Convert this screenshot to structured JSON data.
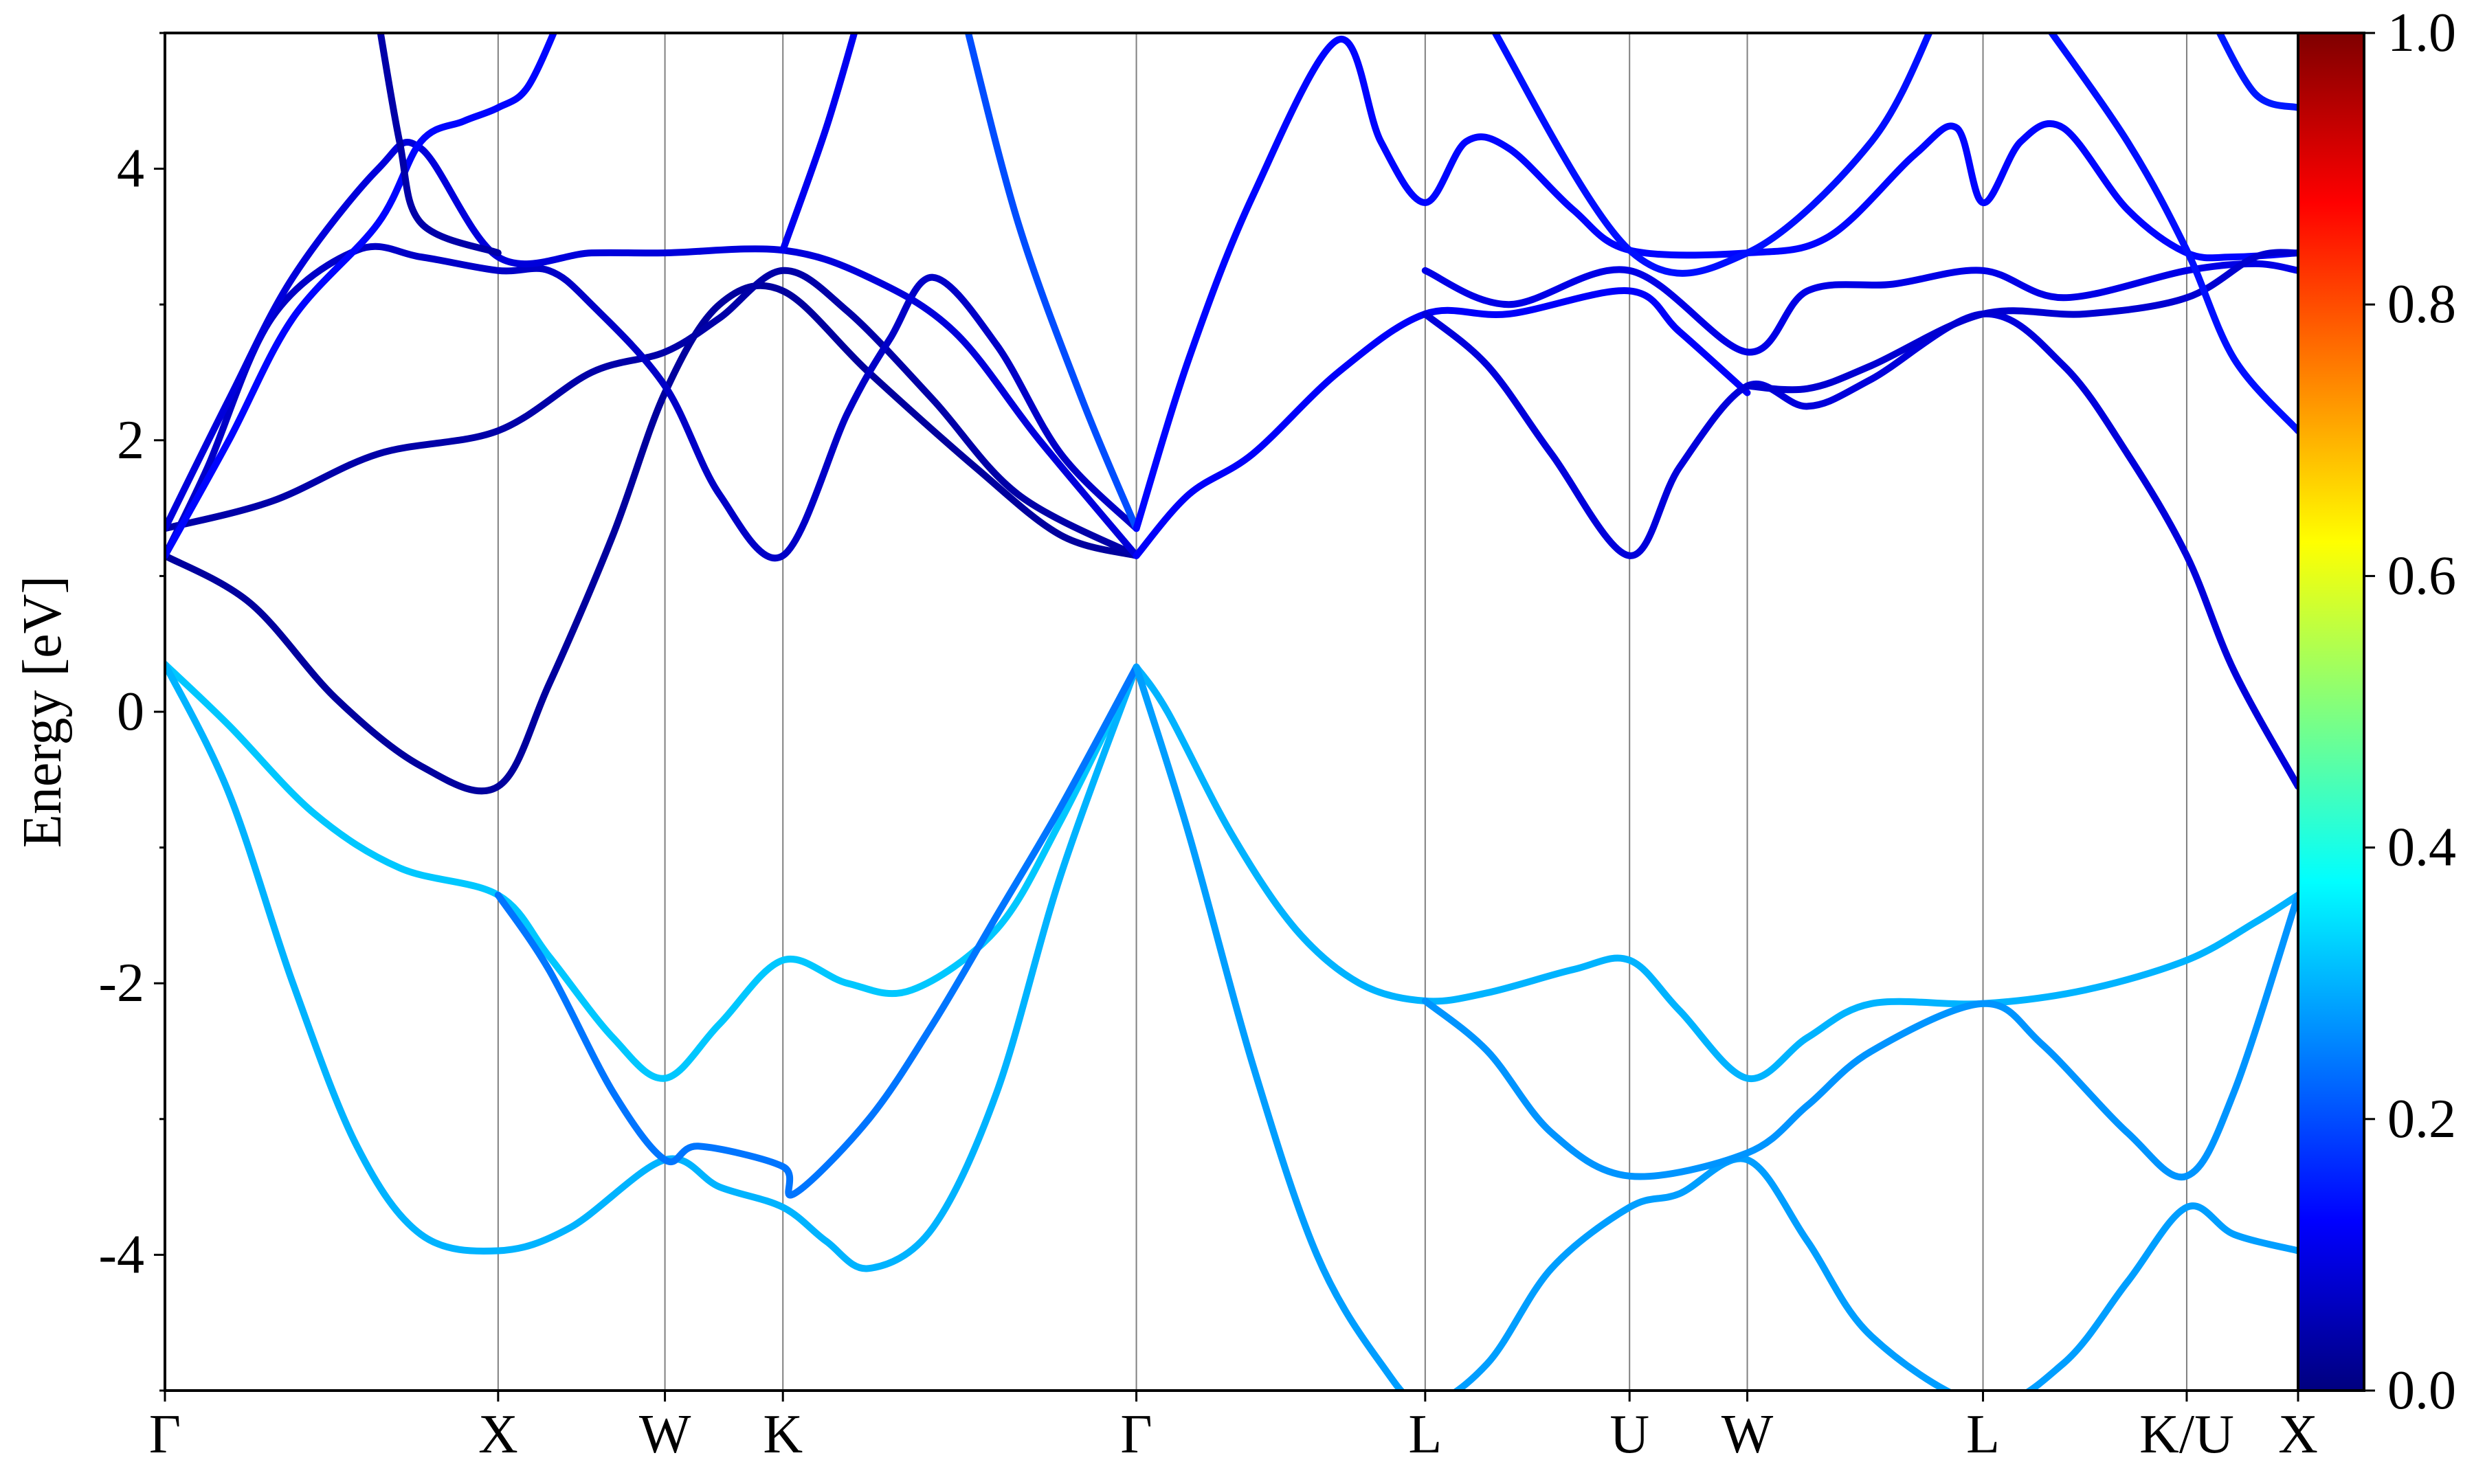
{
  "chart_data": {
    "type": "line",
    "title": "",
    "xlabel": "",
    "ylabel": "Energy [eV]",
    "ylim": [
      -5,
      5
    ],
    "xlim": [
      0,
      1
    ],
    "yticks": [
      -4,
      -2,
      0,
      2,
      4
    ],
    "ytick_labels": [
      "-4",
      "-2",
      "0",
      "2",
      "4"
    ],
    "kpoints": [
      {
        "label": "Γ",
        "x": 0.0
      },
      {
        "label": "X",
        "x": 0.1562
      },
      {
        "label": "W",
        "x": 0.2344
      },
      {
        "label": "K",
        "x": 0.2897
      },
      {
        "label": "Γ",
        "x": 0.4554
      },
      {
        "label": "L",
        "x": 0.5908
      },
      {
        "label": "U",
        "x": 0.6866
      },
      {
        "label": "W",
        "x": 0.7418
      },
      {
        "label": "L",
        "x": 0.8523
      },
      {
        "label": "K/U",
        "x": 0.9478
      },
      {
        "label": "X",
        "x": 1.0
      }
    ],
    "colorbar": {
      "range": [
        0.0,
        1.0
      ],
      "ticks": [
        "0.0",
        "0.2",
        "0.4",
        "0.6",
        "0.8",
        "1.0"
      ],
      "colormap": "jet"
    },
    "series": [
      {
        "weight": 0.32,
        "points": [
          [
            0.0,
            0.35
          ],
          [
            0.03,
            -0.1
          ],
          [
            0.07,
            -0.75
          ],
          [
            0.11,
            -1.15
          ],
          [
            0.1562,
            -1.35
          ],
          [
            0.18,
            -1.8
          ],
          [
            0.21,
            -2.4
          ],
          [
            0.2344,
            -2.7
          ],
          [
            0.26,
            -2.3
          ],
          [
            0.2897,
            -1.83
          ],
          [
            0.32,
            -2.0
          ],
          [
            0.35,
            -2.05
          ],
          [
            0.39,
            -1.6
          ],
          [
            0.42,
            -0.8
          ],
          [
            0.4554,
            0.33
          ]
        ]
      },
      {
        "weight": 0.3,
        "points": [
          [
            0.0,
            0.35
          ],
          [
            0.03,
            -0.6
          ],
          [
            0.06,
            -2.0
          ],
          [
            0.09,
            -3.2
          ],
          [
            0.12,
            -3.85
          ],
          [
            0.1562,
            -3.97
          ],
          [
            0.19,
            -3.8
          ],
          [
            0.2344,
            -3.3
          ],
          [
            0.26,
            -3.5
          ],
          [
            0.2897,
            -3.65
          ],
          [
            0.31,
            -3.9
          ],
          [
            0.33,
            -4.1
          ],
          [
            0.36,
            -3.8
          ],
          [
            0.39,
            -2.8
          ],
          [
            0.42,
            -1.2
          ],
          [
            0.4554,
            0.33
          ]
        ]
      },
      {
        "weight": 0.24,
        "points": [
          [
            0.1562,
            -1.35
          ],
          [
            0.18,
            -1.9
          ],
          [
            0.21,
            -2.8
          ],
          [
            0.2344,
            -3.3
          ],
          [
            0.25,
            -3.2
          ],
          [
            0.2897,
            -3.35
          ],
          [
            0.295,
            -3.55
          ],
          [
            0.33,
            -3.0
          ],
          [
            0.36,
            -2.3
          ],
          [
            0.39,
            -1.5
          ],
          [
            0.42,
            -0.7
          ],
          [
            0.4554,
            0.33
          ]
        ]
      },
      {
        "weight": 0.3,
        "points": [
          [
            0.4554,
            0.33
          ],
          [
            0.47,
            0.0
          ],
          [
            0.5,
            -0.9
          ],
          [
            0.53,
            -1.6
          ],
          [
            0.56,
            -2.0
          ],
          [
            0.5908,
            -2.13
          ],
          [
            0.62,
            -2.07
          ],
          [
            0.66,
            -1.9
          ],
          [
            0.6866,
            -1.83
          ],
          [
            0.71,
            -2.2
          ],
          [
            0.7418,
            -2.7
          ],
          [
            0.77,
            -2.4
          ],
          [
            0.8,
            -2.15
          ],
          [
            0.8523,
            -2.15
          ],
          [
            0.9,
            -2.05
          ],
          [
            0.9478,
            -1.83
          ],
          [
            0.98,
            -1.55
          ],
          [
            1.0,
            -1.35
          ]
        ]
      },
      {
        "weight": 0.28,
        "points": [
          [
            0.4554,
            0.33
          ],
          [
            0.48,
            -0.9
          ],
          [
            0.51,
            -2.6
          ],
          [
            0.54,
            -4.0
          ],
          [
            0.57,
            -4.8
          ],
          [
            0.5908,
            -5.1
          ],
          [
            0.62,
            -4.8
          ],
          [
            0.65,
            -4.1
          ],
          [
            0.6866,
            -3.65
          ],
          [
            0.71,
            -3.55
          ],
          [
            0.7418,
            -3.3
          ],
          [
            0.77,
            -3.9
          ],
          [
            0.8,
            -4.6
          ],
          [
            0.8523,
            -5.1
          ],
          [
            0.89,
            -4.8
          ],
          [
            0.92,
            -4.2
          ],
          [
            0.9478,
            -3.65
          ],
          [
            0.97,
            -3.85
          ],
          [
            1.0,
            -3.97
          ]
        ]
      },
      {
        "weight": 0.27,
        "points": [
          [
            0.5908,
            -2.13
          ],
          [
            0.62,
            -2.5
          ],
          [
            0.65,
            -3.1
          ],
          [
            0.6866,
            -3.42
          ],
          [
            0.7418,
            -3.25
          ],
          [
            0.77,
            -2.9
          ],
          [
            0.8,
            -2.5
          ],
          [
            0.8523,
            -2.15
          ],
          [
            0.88,
            -2.45
          ],
          [
            0.92,
            -3.1
          ],
          [
            0.9478,
            -3.42
          ],
          [
            0.97,
            -2.8
          ],
          [
            1.0,
            -1.35
          ]
        ]
      },
      {
        "weight": 0.03,
        "points": [
          [
            0.0,
            1.15
          ],
          [
            0.04,
            0.8
          ],
          [
            0.08,
            0.1
          ],
          [
            0.12,
            -0.4
          ],
          [
            0.1562,
            -0.55
          ],
          [
            0.18,
            0.2
          ],
          [
            0.21,
            1.3
          ],
          [
            0.2344,
            2.35
          ],
          [
            0.26,
            3.0
          ],
          [
            0.2897,
            3.1
          ],
          [
            0.33,
            2.5
          ],
          [
            0.38,
            1.8
          ],
          [
            0.42,
            1.3
          ],
          [
            0.4554,
            1.15
          ]
        ]
      },
      {
        "weight": 0.04,
        "points": [
          [
            0.0,
            1.35
          ],
          [
            0.05,
            1.55
          ],
          [
            0.1,
            1.9
          ],
          [
            0.1562,
            2.07
          ],
          [
            0.2,
            2.5
          ],
          [
            0.2344,
            2.65
          ],
          [
            0.26,
            2.9
          ],
          [
            0.2897,
            3.25
          ],
          [
            0.32,
            2.95
          ],
          [
            0.36,
            2.3
          ],
          [
            0.4,
            1.6
          ],
          [
            0.4554,
            1.15
          ]
        ]
      },
      {
        "weight": 0.07,
        "points": [
          [
            0.0,
            1.15
          ],
          [
            0.02,
            1.8
          ],
          [
            0.05,
            2.9
          ],
          [
            0.09,
            3.4
          ],
          [
            0.12,
            3.35
          ],
          [
            0.1562,
            3.25
          ],
          [
            0.18,
            3.25
          ],
          [
            0.2,
            3.0
          ],
          [
            0.2344,
            2.4
          ],
          [
            0.26,
            1.6
          ],
          [
            0.2897,
            1.15
          ],
          [
            0.32,
            2.2
          ],
          [
            0.34,
            2.75
          ],
          [
            0.36,
            3.2
          ],
          [
            0.39,
            2.7
          ],
          [
            0.42,
            1.9
          ],
          [
            0.4554,
            1.35
          ]
        ]
      },
      {
        "weight": 0.09,
        "points": [
          [
            0.0,
            1.35
          ],
          [
            0.03,
            2.3
          ],
          [
            0.06,
            3.2
          ],
          [
            0.1,
            4.0
          ],
          [
            0.12,
            4.15
          ],
          [
            0.1562,
            3.35
          ],
          [
            0.2,
            3.38
          ],
          [
            0.2344,
            3.38
          ],
          [
            0.2897,
            3.4
          ],
          [
            0.33,
            3.2
          ],
          [
            0.37,
            2.8
          ],
          [
            0.41,
            2.0
          ],
          [
            0.4554,
            1.15
          ]
        ]
      },
      {
        "weight": 0.13,
        "points": [
          [
            0.0,
            1.15
          ],
          [
            0.03,
            2.0
          ],
          [
            0.06,
            2.9
          ],
          [
            0.1,
            3.6
          ],
          [
            0.12,
            4.2
          ],
          [
            0.14,
            4.35
          ],
          [
            0.1562,
            4.45
          ],
          [
            0.17,
            4.6
          ],
          [
            0.185,
            5.1
          ]
        ]
      },
      {
        "weight": 0.11,
        "points": [
          [
            0.2897,
            3.4
          ],
          [
            0.31,
            4.3
          ],
          [
            0.325,
            5.1
          ]
        ]
      },
      {
        "weight": 0.2,
        "points": [
          [
            0.375,
            5.1
          ],
          [
            0.4,
            3.6
          ],
          [
            0.43,
            2.3
          ],
          [
            0.4554,
            1.35
          ]
        ]
      },
      {
        "weight": 0.04,
        "points": [
          [
            0.1,
            5.1
          ],
          [
            0.11,
            4.2
          ],
          [
            0.12,
            3.6
          ],
          [
            0.1562,
            3.38
          ]
        ]
      },
      {
        "weight": 0.12,
        "points": [
          [
            0.4554,
            1.15
          ],
          [
            0.48,
            1.6
          ],
          [
            0.51,
            1.9
          ],
          [
            0.55,
            2.5
          ],
          [
            0.5908,
            2.93
          ],
          [
            0.63,
            2.93
          ],
          [
            0.6866,
            3.1
          ],
          [
            0.71,
            2.8
          ],
          [
            0.7418,
            2.35
          ]
        ]
      },
      {
        "weight": 0.13,
        "points": [
          [
            0.4554,
            1.35
          ],
          [
            0.48,
            2.6
          ],
          [
            0.51,
            3.8
          ],
          [
            0.55,
            4.95
          ],
          [
            0.57,
            4.2
          ],
          [
            0.5908,
            3.75
          ],
          [
            0.61,
            4.2
          ],
          [
            0.63,
            4.15
          ],
          [
            0.66,
            3.7
          ],
          [
            0.6866,
            3.4
          ],
          [
            0.7418,
            3.38
          ],
          [
            0.78,
            3.5
          ],
          [
            0.82,
            4.1
          ],
          [
            0.84,
            4.3
          ],
          [
            0.8523,
            3.75
          ],
          [
            0.87,
            4.2
          ],
          [
            0.89,
            4.3
          ],
          [
            0.92,
            3.7
          ],
          [
            0.9478,
            3.38
          ],
          [
            0.97,
            3.35
          ],
          [
            1.0,
            3.38
          ]
        ]
      },
      {
        "weight": 0.1,
        "points": [
          [
            0.5908,
            3.25
          ],
          [
            0.63,
            3.0
          ],
          [
            0.6866,
            3.25
          ],
          [
            0.7418,
            2.65
          ],
          [
            0.77,
            3.1
          ],
          [
            0.81,
            3.15
          ],
          [
            0.8523,
            3.25
          ],
          [
            0.89,
            3.05
          ],
          [
            0.9478,
            3.25
          ],
          [
            0.98,
            3.3
          ],
          [
            1.0,
            3.25
          ]
        ]
      },
      {
        "weight": 0.09,
        "points": [
          [
            0.5908,
            2.93
          ],
          [
            0.62,
            2.55
          ],
          [
            0.65,
            1.9
          ],
          [
            0.6866,
            1.15
          ],
          [
            0.71,
            1.8
          ],
          [
            0.7418,
            2.4
          ],
          [
            0.77,
            2.25
          ],
          [
            0.8,
            2.45
          ],
          [
            0.8523,
            2.93
          ],
          [
            0.89,
            2.55
          ],
          [
            0.92,
            1.9
          ],
          [
            0.9478,
            1.15
          ],
          [
            0.97,
            0.3
          ],
          [
            1.0,
            -0.55
          ]
        ]
      },
      {
        "weight": 0.08,
        "points": [
          [
            0.7418,
            2.4
          ],
          [
            0.77,
            2.38
          ],
          [
            0.8,
            2.55
          ],
          [
            0.8523,
            2.93
          ],
          [
            0.9,
            2.93
          ],
          [
            0.9478,
            3.05
          ],
          [
            0.98,
            3.35
          ],
          [
            1.0,
            3.38
          ]
        ]
      },
      {
        "weight": 0.14,
        "points": [
          [
            0.62,
            5.1
          ],
          [
            0.6866,
            3.4
          ],
          [
            0.7418,
            3.38
          ],
          [
            0.8,
            4.2
          ],
          [
            0.83,
            5.1
          ]
        ]
      },
      {
        "weight": 0.14,
        "points": [
          [
            0.88,
            5.1
          ],
          [
            0.92,
            4.2
          ],
          [
            0.9478,
            3.4
          ],
          [
            0.97,
            2.6
          ],
          [
            1.0,
            2.07
          ]
        ]
      },
      {
        "weight": 0.15,
        "points": [
          [
            0.96,
            5.1
          ],
          [
            0.98,
            4.55
          ],
          [
            1.0,
            4.45
          ]
        ]
      }
    ]
  }
}
